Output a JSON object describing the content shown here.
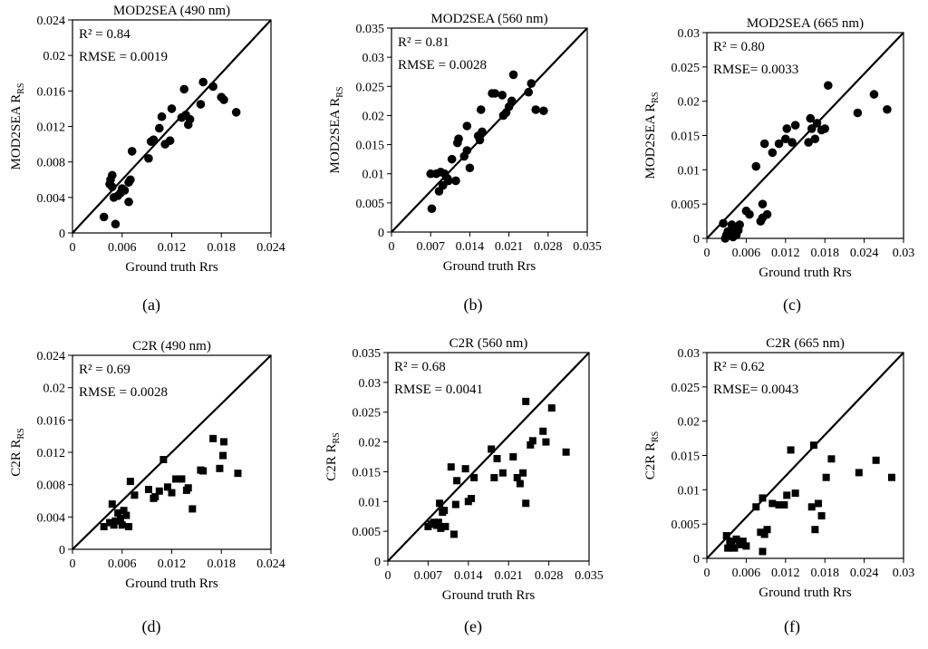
{
  "figure": {
    "panels": [
      {
        "label": "(a)",
        "r2_text": "R² = 0.84",
        "rmse_text": "RMSE = 0.0019",
        "ylabel_main": "MOD2SEA R",
        "ylabel_sub": "RS"
      },
      {
        "label": "(b)",
        "r2_text": "R² = 0.81",
        "rmse_text": "RMSE = 0.0028",
        "ylabel_main": "MOD2SEA R",
        "ylabel_sub": "RS"
      },
      {
        "label": "(c)",
        "r2_text": "R² = 0.80",
        "rmse_text": "RMSE= 0.0033",
        "ylabel_main": "MOD2SEA R",
        "ylabel_sub": "RS"
      },
      {
        "label": "(d)",
        "r2_text": "R² = 0.69",
        "rmse_text": "RMSE = 0.0028",
        "ylabel_main": "C2R R",
        "ylabel_sub": "RS"
      },
      {
        "label": "(e)",
        "r2_text": "R² = 0.68",
        "rmse_text": "RMSE = 0.0041",
        "ylabel_main": "C2R R",
        "ylabel_sub": "RS"
      },
      {
        "label": "(f)",
        "r2_text": "R² = 0.62",
        "rmse_text": "RMSE= 0.0043",
        "ylabel_main": "C2R R",
        "ylabel_sub": "RS"
      }
    ]
  },
  "chart_data": [
    {
      "type": "scatter",
      "marker": "circle",
      "title": "MOD2SEA (490 nm)",
      "xlabel": "Ground truth Rrs",
      "xlim": [
        0,
        0.024
      ],
      "ylim": [
        0,
        0.024
      ],
      "xticks": [
        "0",
        "0.006",
        "0.012",
        "0.018",
        "0.024"
      ],
      "yticks": [
        "0",
        "0.004",
        "0.008",
        "0.012",
        "0.016",
        "0.02",
        "0.024"
      ],
      "reference_line": "1:1",
      "points": [
        [
          0.0038,
          0.0018
        ],
        [
          0.0045,
          0.0055
        ],
        [
          0.0046,
          0.006
        ],
        [
          0.0048,
          0.0065
        ],
        [
          0.0048,
          0.0052
        ],
        [
          0.005,
          0.004
        ],
        [
          0.0052,
          0.001
        ],
        [
          0.0055,
          0.0042
        ],
        [
          0.0058,
          0.0045
        ],
        [
          0.006,
          0.005
        ],
        [
          0.0063,
          0.0048
        ],
        [
          0.0068,
          0.0057
        ],
        [
          0.0068,
          0.0035
        ],
        [
          0.007,
          0.006
        ],
        [
          0.0072,
          0.0092
        ],
        [
          0.0092,
          0.0084
        ],
        [
          0.0095,
          0.0103
        ],
        [
          0.0098,
          0.0105
        ],
        [
          0.0105,
          0.0118
        ],
        [
          0.0108,
          0.0131
        ],
        [
          0.0112,
          0.01
        ],
        [
          0.0118,
          0.0104
        ],
        [
          0.012,
          0.014
        ],
        [
          0.0132,
          0.013
        ],
        [
          0.0135,
          0.0162
        ],
        [
          0.0137,
          0.0133
        ],
        [
          0.014,
          0.0122
        ],
        [
          0.0142,
          0.0128
        ],
        [
          0.0155,
          0.0145
        ],
        [
          0.0158,
          0.017
        ],
        [
          0.017,
          0.0165
        ],
        [
          0.018,
          0.0153
        ],
        [
          0.0183,
          0.015
        ],
        [
          0.0198,
          0.0136
        ]
      ]
    },
    {
      "type": "scatter",
      "marker": "circle",
      "title": "MOD2SEA (560 nm)",
      "xlabel": "Ground truth Rrs",
      "xlim": [
        0,
        0.035
      ],
      "ylim": [
        0,
        0.035
      ],
      "xticks": [
        "0",
        "0.007",
        "0.014",
        "0.021",
        "0.028",
        "0.035"
      ],
      "yticks": [
        "0",
        "0.005",
        "0.01",
        "0.015",
        "0.02",
        "0.025",
        "0.03",
        "0.035"
      ],
      "reference_line": "1:1",
      "points": [
        [
          0.007,
          0.01
        ],
        [
          0.0072,
          0.004
        ],
        [
          0.008,
          0.01
        ],
        [
          0.0085,
          0.007
        ],
        [
          0.0088,
          0.0103
        ],
        [
          0.0092,
          0.008
        ],
        [
          0.0095,
          0.01
        ],
        [
          0.01,
          0.0092
        ],
        [
          0.0102,
          0.0088
        ],
        [
          0.0108,
          0.0125
        ],
        [
          0.0115,
          0.0088
        ],
        [
          0.0118,
          0.0153
        ],
        [
          0.012,
          0.016
        ],
        [
          0.013,
          0.013
        ],
        [
          0.0135,
          0.0182
        ],
        [
          0.0135,
          0.014
        ],
        [
          0.014,
          0.011
        ],
        [
          0.0155,
          0.0165
        ],
        [
          0.0158,
          0.0158
        ],
        [
          0.016,
          0.021
        ],
        [
          0.0162,
          0.0172
        ],
        [
          0.018,
          0.0238
        ],
        [
          0.0185,
          0.0238
        ],
        [
          0.0198,
          0.0235
        ],
        [
          0.02,
          0.02
        ],
        [
          0.0205,
          0.0205
        ],
        [
          0.021,
          0.0215
        ],
        [
          0.0215,
          0.0225
        ],
        [
          0.0218,
          0.027
        ],
        [
          0.0245,
          0.024
        ],
        [
          0.025,
          0.0255
        ],
        [
          0.0258,
          0.021
        ],
        [
          0.0272,
          0.0208
        ]
      ]
    },
    {
      "type": "scatter",
      "marker": "circle",
      "title": "MOD2SEA (665 nm)",
      "xlabel": "Ground truth Rrs",
      "xlim": [
        0,
        0.03
      ],
      "ylim": [
        0,
        0.03
      ],
      "xticks": [
        "0",
        "0.006",
        "0.012",
        "0.018",
        "0.024",
        "0.03"
      ],
      "yticks": [
        "0",
        "0.005",
        "0.01",
        "0.015",
        "0.02",
        "0.025",
        "0.03"
      ],
      "reference_line": "1:1",
      "points": [
        [
          0.0025,
          0.0022
        ],
        [
          0.0028,
          0.0
        ],
        [
          0.003,
          0.0005
        ],
        [
          0.0032,
          0.001
        ],
        [
          0.0035,
          0.0008
        ],
        [
          0.0038,
          0.002
        ],
        [
          0.004,
          0.0002
        ],
        [
          0.0042,
          0.0015
        ],
        [
          0.0045,
          0.0005
        ],
        [
          0.0048,
          0.0012
        ],
        [
          0.005,
          0.002
        ],
        [
          0.006,
          0.004
        ],
        [
          0.0065,
          0.0035
        ],
        [
          0.0075,
          0.0105
        ],
        [
          0.0082,
          0.0025
        ],
        [
          0.0085,
          0.003
        ],
        [
          0.0085,
          0.005
        ],
        [
          0.0088,
          0.0138
        ],
        [
          0.0092,
          0.0035
        ],
        [
          0.01,
          0.0125
        ],
        [
          0.011,
          0.0138
        ],
        [
          0.012,
          0.0145
        ],
        [
          0.0122,
          0.016
        ],
        [
          0.013,
          0.014
        ],
        [
          0.0135,
          0.0165
        ],
        [
          0.0155,
          0.014
        ],
        [
          0.0158,
          0.0175
        ],
        [
          0.016,
          0.016
        ],
        [
          0.0165,
          0.0145
        ],
        [
          0.0168,
          0.0168
        ],
        [
          0.0175,
          0.0158
        ],
        [
          0.018,
          0.016
        ],
        [
          0.0185,
          0.0223
        ],
        [
          0.023,
          0.0183
        ],
        [
          0.0255,
          0.021
        ],
        [
          0.0275,
          0.0188
        ]
      ]
    },
    {
      "type": "scatter",
      "marker": "square",
      "title": "C2R (490 nm)",
      "xlabel": "Ground truth Rrs",
      "xlim": [
        0,
        0.024
      ],
      "ylim": [
        0,
        0.024
      ],
      "xticks": [
        "0",
        "0.006",
        "0.012",
        "0.018",
        "0.024"
      ],
      "yticks": [
        "0",
        "0.004",
        "0.008",
        "0.012",
        "0.016",
        "0.02",
        "0.024"
      ],
      "reference_line": "1:1",
      "points": [
        [
          0.0038,
          0.0028
        ],
        [
          0.0045,
          0.0033
        ],
        [
          0.0048,
          0.0056
        ],
        [
          0.005,
          0.003
        ],
        [
          0.0052,
          0.0035
        ],
        [
          0.0055,
          0.0045
        ],
        [
          0.0058,
          0.0038
        ],
        [
          0.006,
          0.003
        ],
        [
          0.0062,
          0.0048
        ],
        [
          0.0065,
          0.0042
        ],
        [
          0.0068,
          0.0028
        ],
        [
          0.007,
          0.0084
        ],
        [
          0.0075,
          0.0067
        ],
        [
          0.0092,
          0.0074
        ],
        [
          0.0098,
          0.0063
        ],
        [
          0.01,
          0.0065
        ],
        [
          0.0105,
          0.0072
        ],
        [
          0.011,
          0.0111
        ],
        [
          0.0115,
          0.0077
        ],
        [
          0.012,
          0.007
        ],
        [
          0.0125,
          0.0087
        ],
        [
          0.0132,
          0.0087
        ],
        [
          0.0138,
          0.0073
        ],
        [
          0.014,
          0.0076
        ],
        [
          0.0145,
          0.005
        ],
        [
          0.0155,
          0.0098
        ],
        [
          0.0158,
          0.0097
        ],
        [
          0.017,
          0.0137
        ],
        [
          0.0178,
          0.01
        ],
        [
          0.0182,
          0.0116
        ],
        [
          0.0183,
          0.0133
        ],
        [
          0.02,
          0.0094
        ]
      ]
    },
    {
      "type": "scatter",
      "marker": "square",
      "title": "C2R (560 nm)",
      "xlabel": "Ground truth Rrs",
      "xlim": [
        0,
        0.035
      ],
      "ylim": [
        0,
        0.035
      ],
      "xticks": [
        "0",
        "0.007",
        "0.014",
        "0.021",
        "0.028",
        "0.035"
      ],
      "yticks": [
        "0",
        "0.005",
        "0.01",
        "0.015",
        "0.02",
        "0.025",
        "0.03",
        "0.035"
      ],
      "reference_line": "1:1",
      "points": [
        [
          0.007,
          0.0058
        ],
        [
          0.0075,
          0.0062
        ],
        [
          0.008,
          0.0065
        ],
        [
          0.0085,
          0.006
        ],
        [
          0.0088,
          0.0065
        ],
        [
          0.009,
          0.0097
        ],
        [
          0.0092,
          0.0055
        ],
        [
          0.0095,
          0.0082
        ],
        [
          0.0098,
          0.0085
        ],
        [
          0.01,
          0.0058
        ],
        [
          0.011,
          0.0158
        ],
        [
          0.0115,
          0.0045
        ],
        [
          0.0118,
          0.0095
        ],
        [
          0.012,
          0.0135
        ],
        [
          0.0135,
          0.0155
        ],
        [
          0.014,
          0.01
        ],
        [
          0.0145,
          0.0105
        ],
        [
          0.015,
          0.014
        ],
        [
          0.018,
          0.0188
        ],
        [
          0.0185,
          0.014
        ],
        [
          0.019,
          0.0172
        ],
        [
          0.02,
          0.0148
        ],
        [
          0.0218,
          0.0175
        ],
        [
          0.0225,
          0.014
        ],
        [
          0.023,
          0.013
        ],
        [
          0.0235,
          0.0148
        ],
        [
          0.024,
          0.0097
        ],
        [
          0.024,
          0.0268
        ],
        [
          0.0248,
          0.0195
        ],
        [
          0.0252,
          0.0202
        ],
        [
          0.027,
          0.0218
        ],
        [
          0.0275,
          0.02
        ],
        [
          0.0285,
          0.0257
        ],
        [
          0.031,
          0.0183
        ]
      ]
    },
    {
      "type": "scatter",
      "marker": "square",
      "title": "C2R (665 nm)",
      "xlabel": "Ground truth Rrs",
      "xlim": [
        0,
        0.03
      ],
      "ylim": [
        0,
        0.03
      ],
      "xticks": [
        "0",
        "0.006",
        "0.012",
        "0.018",
        "0.024",
        "0.03"
      ],
      "yticks": [
        "0",
        "0.005",
        "0.01",
        "0.015",
        "0.02",
        "0.025",
        "0.03"
      ],
      "reference_line": "1:1",
      "points": [
        [
          0.003,
          0.0033
        ],
        [
          0.0032,
          0.0015
        ],
        [
          0.0035,
          0.0025
        ],
        [
          0.0038,
          0.0018
        ],
        [
          0.0042,
          0.0015
        ],
        [
          0.0045,
          0.0028
        ],
        [
          0.005,
          0.002
        ],
        [
          0.0055,
          0.0025
        ],
        [
          0.006,
          0.0018
        ],
        [
          0.0075,
          0.0075
        ],
        [
          0.0082,
          0.0038
        ],
        [
          0.0085,
          0.001
        ],
        [
          0.0085,
          0.0088
        ],
        [
          0.0088,
          0.0035
        ],
        [
          0.0092,
          0.0042
        ],
        [
          0.01,
          0.008
        ],
        [
          0.011,
          0.0078
        ],
        [
          0.0118,
          0.0078
        ],
        [
          0.0122,
          0.0092
        ],
        [
          0.0128,
          0.0158
        ],
        [
          0.0135,
          0.0095
        ],
        [
          0.016,
          0.0075
        ],
        [
          0.0163,
          0.0165
        ],
        [
          0.0165,
          0.0042
        ],
        [
          0.017,
          0.008
        ],
        [
          0.0175,
          0.0062
        ],
        [
          0.0182,
          0.0118
        ],
        [
          0.019,
          0.0145
        ],
        [
          0.0232,
          0.0125
        ],
        [
          0.0258,
          0.0143
        ],
        [
          0.0282,
          0.0118
        ]
      ]
    }
  ]
}
